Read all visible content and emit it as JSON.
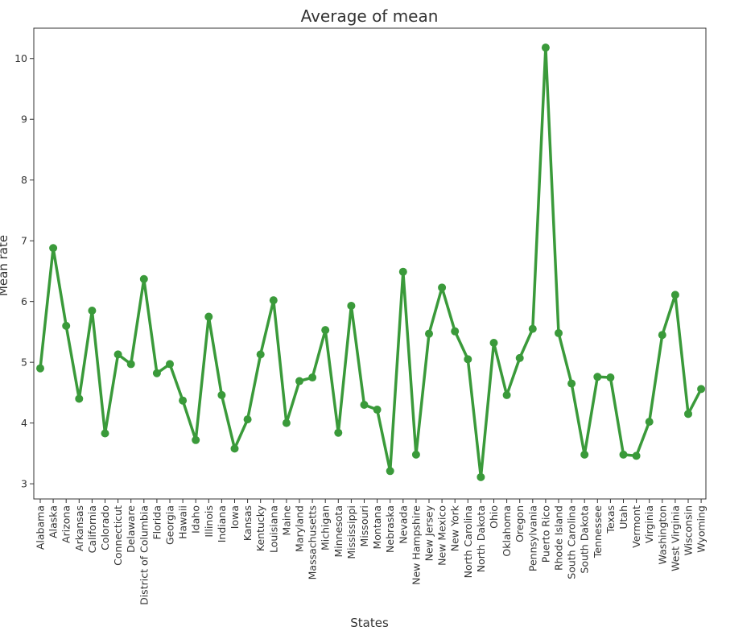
{
  "chart_data": {
    "type": "line",
    "title": "Average of mean",
    "xlabel": "States",
    "ylabel": "Mean rate",
    "ylim": [
      2.75,
      10.5
    ],
    "yticks": [
      3,
      4,
      5,
      6,
      7,
      8,
      9,
      10
    ],
    "grid": false,
    "legend": "none",
    "line_color": "#3a9a3a",
    "marker": "circle",
    "categories": [
      "Alabama",
      "Alaska",
      "Arizona",
      "Arkansas",
      "California",
      "Colorado",
      "Connecticut",
      "Delaware",
      "District of Columbia",
      "Florida",
      "Georgia",
      "Hawaii",
      "Idaho",
      "Illinois",
      "Indiana",
      "Iowa",
      "Kansas",
      "Kentucky",
      "Louisiana",
      "Maine",
      "Maryland",
      "Massachusetts",
      "Michigan",
      "Minnesota",
      "Mississippi",
      "Missouri",
      "Montana",
      "Nebraska",
      "Nevada",
      "New Hampshire",
      "New Jersey",
      "New Mexico",
      "New York",
      "North Carolina",
      "North Dakota",
      "Ohio",
      "Oklahoma",
      "Oregon",
      "Pennsylvania",
      "Puerto Rico",
      "Rhode Island",
      "South Carolina",
      "South Dakota",
      "Tennessee",
      "Texas",
      "Utah",
      "Vermont",
      "Virginia",
      "Washington",
      "West Virginia",
      "Wisconsin",
      "Wyoming"
    ],
    "values": [
      4.9,
      6.88,
      5.6,
      4.4,
      5.85,
      3.83,
      5.13,
      4.97,
      6.37,
      4.82,
      4.97,
      4.37,
      3.72,
      5.75,
      4.46,
      3.58,
      4.06,
      5.13,
      6.02,
      4.0,
      4.69,
      4.75,
      5.53,
      3.84,
      5.93,
      4.3,
      4.22,
      3.21,
      6.49,
      3.48,
      5.47,
      6.23,
      5.51,
      5.05,
      3.11,
      5.32,
      4.46,
      5.07,
      5.55,
      10.18,
      5.48,
      4.65,
      3.48,
      4.76,
      4.75,
      3.48,
      3.46,
      4.02,
      5.45,
      6.11,
      4.15,
      4.56
    ]
  }
}
